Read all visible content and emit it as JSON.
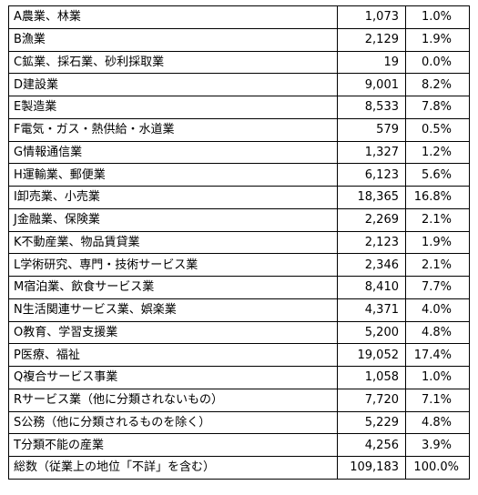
{
  "rows": [
    {
      "label": "A農業、林業",
      "count": "1,073",
      "share": "1.0%"
    },
    {
      "label": "B漁業",
      "count": "2,129",
      "share": "1.9%"
    },
    {
      "label": "C鉱業、採石業、砂利採取業",
      "count": "19",
      "share": "0.0%"
    },
    {
      "label": "D建設業",
      "count": "9,001",
      "share": "8.2%"
    },
    {
      "label": "E製造業",
      "count": "8,533",
      "share": "7.8%"
    },
    {
      "label": "F電気・ガス・熱供給・水道業",
      "count": "579",
      "share": "0.5%"
    },
    {
      "label": "G情報通信業",
      "count": "1,327",
      "share": "1.2%"
    },
    {
      "label": "H運輸業、郵便業",
      "count": "6,123",
      "share": "5.6%"
    },
    {
      "label": "I卸売業、小売業",
      "count": "18,365",
      "share": "16.8%"
    },
    {
      "label": "J金融業、保険業",
      "count": "2,269",
      "share": "2.1%"
    },
    {
      "label": "K不動産業、物品賃貸業",
      "count": "2,123",
      "share": "1.9%"
    },
    {
      "label": "L学術研究、専門・技術サービス業",
      "count": "2,346",
      "share": "2.1%"
    },
    {
      "label": "M宿泊業、飲食サービス業",
      "count": "8,410",
      "share": "7.7%"
    },
    {
      "label": "N生活関連サービス業、娯楽業",
      "count": "4,371",
      "share": "4.0%"
    },
    {
      "label": "O教育、学習支援業",
      "count": "5,200",
      "share": "4.8%"
    },
    {
      "label": "P医療、福祉",
      "count": "19,052",
      "share": "17.4%"
    },
    {
      "label": "Q複合サービス事業",
      "count": "1,058",
      "share": "1.0%"
    },
    {
      "label": "Rサービス業（他に分類されないもの）",
      "count": "7,720",
      "share": "7.1%"
    },
    {
      "label": "S公務（他に分類されるものを除く）",
      "count": "5,229",
      "share": "4.8%"
    },
    {
      "label": "T分類不能の産業",
      "count": "4,256",
      "share": "3.9%"
    }
  ],
  "total": {
    "label": "総数（従業上の地位「不詳」を含む）",
    "count": "109,183",
    "share": "100.0%"
  }
}
